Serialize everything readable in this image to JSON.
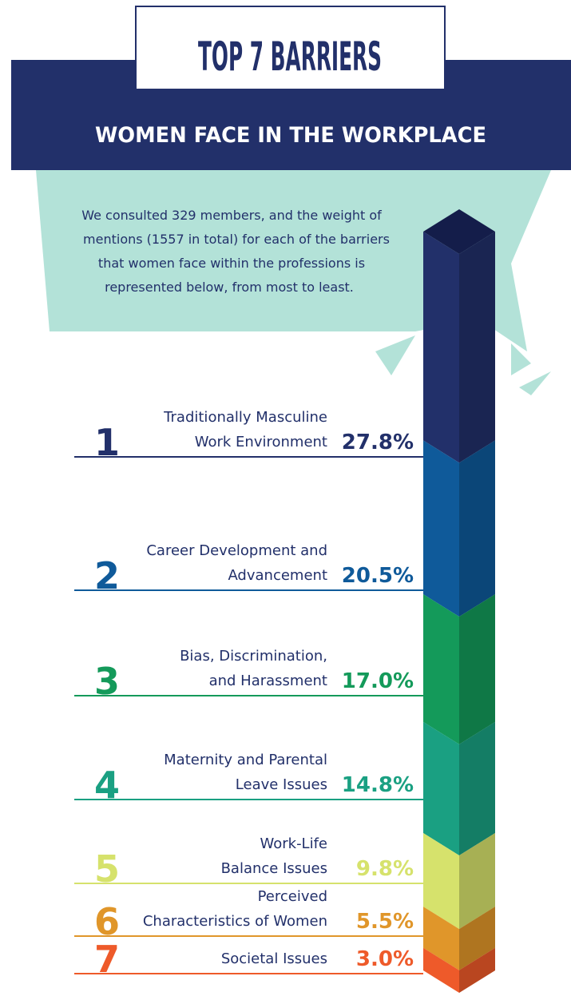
{
  "chart_data": {
    "type": "stacked-column",
    "title": "TOP 7 BARRIERS",
    "subtitle": "WOMEN FACE IN THE WORKPLACE",
    "description": [
      "We consulted 329 members, and the weight of",
      "mentions (1557 in total) for each of the barriers",
      "that women face within the professions is",
      "represented below, from most to least."
    ],
    "ranks": [
      "1",
      "2",
      "3",
      "4",
      "5",
      "6",
      "7"
    ],
    "categories": [
      [
        "Traditionally Masculine",
        "Work Environment"
      ],
      [
        "Career Development and",
        "Advancement"
      ],
      [
        "Bias, Discrimination,",
        "and Harassment"
      ],
      [
        "Maternity and Parental",
        "Leave Issues"
      ],
      [
        "Work-Life",
        "Balance Issues"
      ],
      [
        "Perceived",
        "Characteristics of Women"
      ],
      [
        "Societal Issues"
      ]
    ],
    "values": [
      27.8,
      20.5,
      17.0,
      14.8,
      9.8,
      5.5,
      3.0
    ],
    "value_labels": [
      "27.8%",
      "20.5%",
      "17.0%",
      "14.8%",
      "9.8%",
      "5.5%",
      "3.0%"
    ],
    "colors": [
      "#22306a",
      "#0f5a9a",
      "#149a5a",
      "#1aa082",
      "#d6e26c",
      "#e0962a",
      "#ee5a2a"
    ]
  }
}
